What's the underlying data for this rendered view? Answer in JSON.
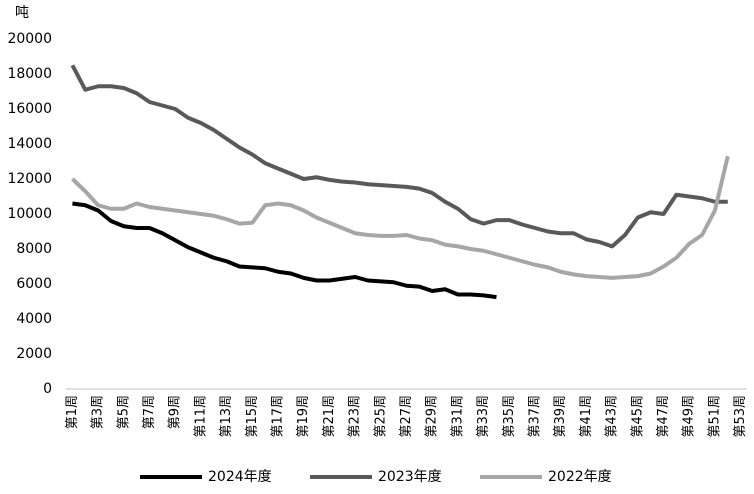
{
  "chart_data": {
    "type": "line",
    "y_label": "吨",
    "categories": [
      "第1周",
      null,
      "第3周",
      null,
      "第5周",
      null,
      "第7周",
      null,
      "第9周",
      null,
      "第11周",
      null,
      "第13周",
      null,
      "第15周",
      null,
      "第17周",
      null,
      "第19周",
      null,
      "第21周",
      null,
      "第23周",
      null,
      "第25周",
      null,
      "第27周",
      null,
      "第29周",
      null,
      "第31周",
      null,
      "第33周",
      null,
      "第35周",
      null,
      "第37周",
      null,
      "第39周",
      null,
      "第41周",
      null,
      "第43周",
      null,
      "第45周",
      null,
      "第47周",
      null,
      "第49周",
      null,
      "第51周",
      null,
      "第53周"
    ],
    "series": [
      {
        "name": "2024年度",
        "color": "#000000",
        "values": [
          10600,
          10500,
          10200,
          9600,
          9300,
          9200,
          9200,
          8900,
          8500,
          8100,
          7800,
          7500,
          7300,
          7000,
          6950,
          6900,
          6700,
          6600,
          6350,
          6200,
          6200,
          6300,
          6400,
          6200,
          6150,
          6100,
          5900,
          5850,
          5600,
          5700,
          5400,
          5400,
          5350,
          5250,
          null,
          null,
          null,
          null,
          null,
          null,
          null,
          null,
          null,
          null,
          null,
          null,
          null,
          null,
          null,
          null,
          null,
          null,
          null
        ]
      },
      {
        "name": "2023年度",
        "color": "#595959",
        "values": [
          18500,
          17100,
          17300,
          17300,
          17200,
          16900,
          16400,
          16200,
          16000,
          15500,
          15200,
          14800,
          14300,
          13800,
          13400,
          12900,
          12600,
          12300,
          12000,
          12100,
          11950,
          11850,
          11800,
          11700,
          11650,
          11600,
          11550,
          11450,
          11200,
          10700,
          10300,
          9700,
          9450,
          9650,
          9650,
          9400,
          9200,
          9000,
          8900,
          8900,
          8550,
          8400,
          8150,
          8800,
          9800,
          10100,
          10000,
          11100,
          11000,
          10900,
          10700,
          10700,
          null
        ]
      },
      {
        "name": "2022年度",
        "color": "#a6a6a6",
        "values": [
          12000,
          11300,
          10500,
          10300,
          10300,
          10600,
          10400,
          10300,
          10200,
          10100,
          10000,
          9900,
          9700,
          9450,
          9500,
          10500,
          10600,
          10500,
          10200,
          9800,
          9500,
          9200,
          8900,
          8800,
          8750,
          8750,
          8800,
          8600,
          8500,
          8250,
          8150,
          8000,
          7900,
          7700,
          7500,
          7300,
          7100,
          6950,
          6700,
          6550,
          6450,
          6400,
          6350,
          6400,
          6450,
          6600,
          7000,
          7500,
          8300,
          8800,
          10200,
          13300,
          null
        ]
      }
    ],
    "ylim": [
      0,
      20000
    ],
    "yticks": [
      0,
      2000,
      4000,
      6000,
      8000,
      10000,
      12000,
      14000,
      16000,
      18000,
      20000
    ],
    "grid": false,
    "legend": "bottom"
  }
}
